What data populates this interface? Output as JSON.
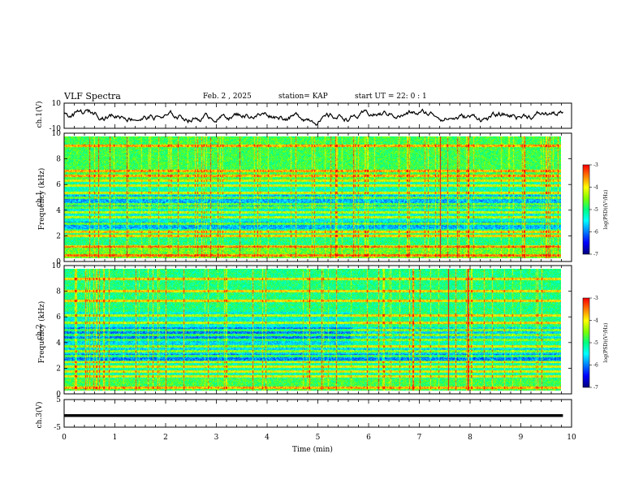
{
  "header": {
    "title": "VLF Spectra",
    "date": "Feb. 2 , 2025",
    "station": "station= KAP",
    "start": "start UT =  22: 0  : 1"
  },
  "colors": {
    "trace": "#000000",
    "colormap": [
      "#000080",
      "#0000ff",
      "#0080ff",
      "#00ffff",
      "#00ff80",
      "#80ff00",
      "#ffff00",
      "#ff8000",
      "#ff0000"
    ]
  },
  "chart_data": [
    {
      "type": "line",
      "panel": "ch1-waveform",
      "ylabel": "ch.1(V)",
      "ylim": [
        -10,
        10
      ],
      "yticks": [
        "10",
        "-10"
      ],
      "xlim": [
        0,
        10
      ]
    },
    {
      "type": "heatmap",
      "panel": "ch1-spectrogram",
      "ylabel_line1": "ch.1",
      "ylabel_line2": "Frequency (kHz)",
      "ylim": [
        0,
        10
      ],
      "yticks": [
        "0",
        "2",
        "4",
        "6",
        "8",
        "10"
      ],
      "xlim": [
        0,
        10
      ],
      "data_end_min": 9.83,
      "bands_khz": [
        0.3,
        1.0,
        1.9,
        2.2,
        2.9,
        3.4,
        3.8,
        4.2,
        4.5,
        5.0,
        5.4,
        6.0,
        6.4,
        6.8,
        7.2,
        9.3
      ],
      "colorbar": {
        "label": "log(PSD)(V²/Hz)",
        "ticks": [
          "-3",
          "-4",
          "-5",
          "-6",
          "-7"
        ],
        "range": [
          -7,
          -3
        ]
      }
    },
    {
      "type": "heatmap",
      "panel": "ch2-spectrogram",
      "ylabel_line1": "ch.2",
      "ylabel_line2": "Frequency (kHz)",
      "ylim": [
        0,
        10
      ],
      "yticks": [
        "0",
        "2",
        "4",
        "6",
        "8",
        "10"
      ],
      "xlim": [
        0,
        10
      ],
      "data_end_min": 9.83,
      "bands_khz": [
        0.3,
        1.2,
        1.6,
        2.0,
        2.4,
        2.9,
        3.3,
        3.7,
        4.2,
        4.6,
        5.0,
        5.6,
        6.2,
        7.4,
        8.2,
        9.2
      ],
      "colorbar": {
        "label": "log(PSD)(V²/Hz)",
        "ticks": [
          "-3",
          "-4",
          "-5",
          "-6",
          "-7"
        ],
        "range": [
          -7,
          -3
        ]
      }
    },
    {
      "type": "line",
      "panel": "ch3-waveform",
      "ylabel": "ch.3(V)",
      "ylim": [
        -5,
        5
      ],
      "yticks": [
        "5",
        "-5"
      ],
      "xlim": [
        0,
        10
      ],
      "level": [
        -1.3,
        -0.3
      ],
      "xlabel": "Time (min)",
      "xticks": [
        "0",
        "1",
        "2",
        "3",
        "4",
        "5",
        "6",
        "7",
        "8",
        "9",
        "10"
      ]
    }
  ]
}
